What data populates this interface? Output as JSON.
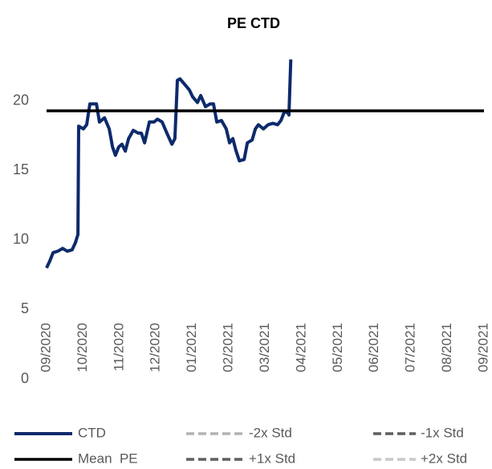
{
  "chart_data": {
    "type": "line",
    "title": "PE CTD",
    "xlim": [
      0,
      12
    ],
    "xticks": [
      {
        "value": 0,
        "label": "09/2020"
      },
      {
        "value": 1,
        "label": "10/2020"
      },
      {
        "value": 2,
        "label": "11/2020"
      },
      {
        "value": 3,
        "label": "12/2020"
      },
      {
        "value": 4,
        "label": "01/2021"
      },
      {
        "value": 5,
        "label": "02/2021"
      },
      {
        "value": 6,
        "label": "03/2021"
      },
      {
        "value": 7,
        "label": "04/2021"
      },
      {
        "value": 8,
        "label": "05/2021"
      },
      {
        "value": 9,
        "label": "06/2021"
      },
      {
        "value": 10,
        "label": "07/2021"
      },
      {
        "value": 11,
        "label": "08/2021"
      },
      {
        "value": 12,
        "label": "09/2021"
      }
    ],
    "ylim": [
      0,
      23
    ],
    "yticks": [
      0,
      5,
      10,
      15,
      20
    ],
    "grid": false,
    "legend": "bottom",
    "series": [
      {
        "name": "CTD",
        "color": "#0d2a6b",
        "dash": false,
        "x": [
          0,
          0.09,
          0.18,
          0.31,
          0.44,
          0.57,
          0.7,
          0.79,
          0.86,
          0.88,
          1.01,
          1.1,
          1.19,
          1.37,
          1.45,
          1.59,
          1.72,
          1.81,
          1.89,
          1.98,
          2.07,
          2.16,
          2.25,
          2.38,
          2.51,
          2.6,
          2.69,
          2.82,
          2.95,
          3.04,
          3.17,
          3.3,
          3.44,
          3.52,
          3.59,
          3.66,
          3.79,
          3.92,
          4.01,
          4.14,
          4.23,
          4.36,
          4.49,
          4.58,
          4.67,
          4.8,
          4.93,
          5.02,
          5.11,
          5.2,
          5.29,
          5.42,
          5.51,
          5.64,
          5.73,
          5.81,
          5.95,
          6.08,
          6.21,
          6.34,
          6.43,
          6.52,
          6.61,
          6.65,
          6.7
        ],
        "values": [
          8.0,
          8.5,
          9.1,
          9.2,
          9.4,
          9.2,
          9.3,
          9.8,
          10.4,
          18.2,
          18.0,
          18.3,
          19.8,
          19.8,
          18.5,
          18.8,
          18.0,
          16.7,
          16.1,
          16.7,
          16.9,
          16.4,
          17.3,
          17.9,
          17.7,
          17.7,
          17.0,
          18.5,
          18.5,
          18.7,
          18.5,
          17.7,
          16.9,
          17.3,
          21.5,
          21.6,
          21.2,
          20.8,
          20.3,
          19.9,
          20.4,
          19.6,
          19.8,
          19.8,
          18.5,
          18.6,
          18.0,
          17.0,
          17.3,
          16.4,
          15.7,
          15.8,
          17.0,
          17.2,
          18.0,
          18.3,
          18.0,
          18.3,
          18.4,
          18.3,
          18.6,
          19.2,
          19.2,
          19.0,
          23
        ]
      },
      {
        "name": "-2x Std",
        "color": "#b3b3b3",
        "dash": true,
        "x": [],
        "values": []
      },
      {
        "name": "-1x Std",
        "color": "#5f5f5f",
        "dash": true,
        "x": [],
        "values": []
      },
      {
        "name": "Mean  PE",
        "color": "#000000",
        "dash": false,
        "x": [
          0,
          12
        ],
        "values": [
          19.3,
          19.3
        ]
      },
      {
        "name": "+1x Std",
        "color": "#5f5f5f",
        "dash": true,
        "x": [],
        "values": []
      },
      {
        "name": "+2x Std",
        "color": "#c8c8c8",
        "dash": true,
        "x": [],
        "values": []
      }
    ]
  }
}
